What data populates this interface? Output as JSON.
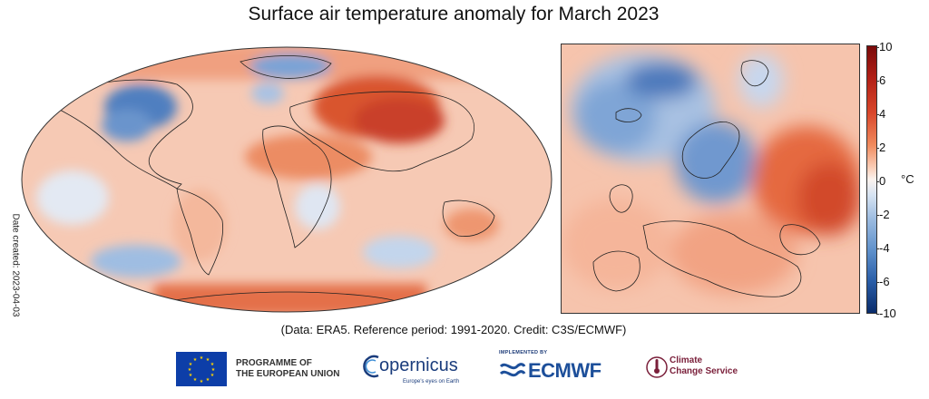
{
  "title": "Surface air temperature anomaly for March 2023",
  "date_created": "Date created: 2023-04-03",
  "caption": "(Data: ERA5.  Reference period: 1991-2020.  Credit: C3S/ECMWF)",
  "colorbar": {
    "ticks": [
      "10",
      "6",
      "4",
      "2",
      "0",
      "-2",
      "-4",
      "-6",
      "-10"
    ],
    "unit": "°C",
    "colors": {
      "max": "#7a0a0a",
      "mid": "#fbf3ee",
      "min": "#0a2c6b"
    }
  },
  "maps": {
    "world": {
      "icon": "world-anomaly-map"
    },
    "europe": {
      "icon": "europe-anomaly-map"
    }
  },
  "footer": {
    "eu_line1": "PROGRAMME OF",
    "eu_line2": "THE EUROPEAN UNION",
    "copernicus": "opernicus",
    "copernicus_sub": "Europe's eyes on Earth",
    "ecmwf_impl": "IMPLEMENTED BY",
    "ecmwf": "ECMWF",
    "c3s_line1": "Climate",
    "c3s_line2": "Change Service"
  }
}
